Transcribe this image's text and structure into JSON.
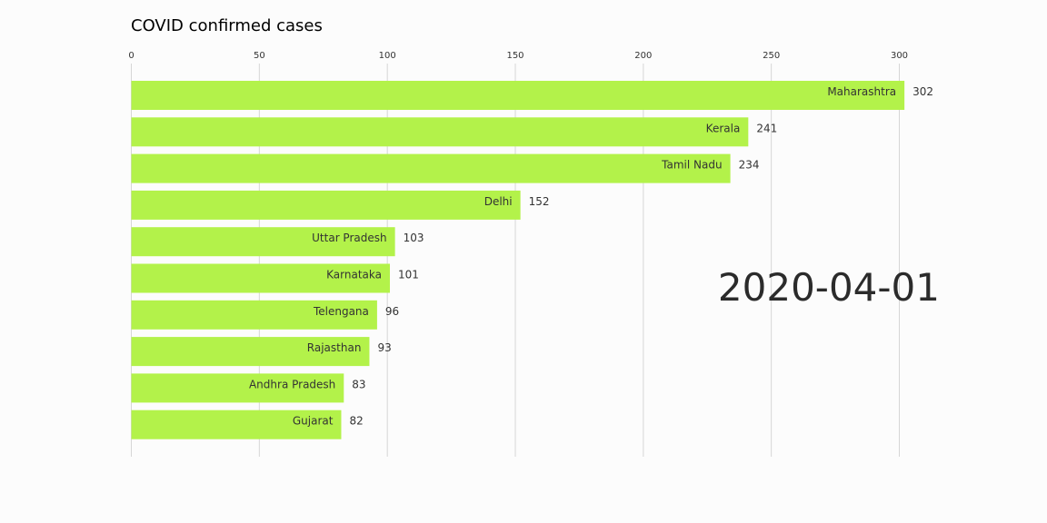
{
  "chart_data": {
    "type": "bar",
    "orientation": "horizontal",
    "title": "COVID confirmed cases",
    "date": "2020-04-01",
    "categories": [
      "Maharashtra",
      "Kerala",
      "Tamil Nadu",
      "Delhi",
      "Uttar Pradesh",
      "Karnataka",
      "Telengana",
      "Rajasthan",
      "Andhra Pradesh",
      "Gujarat"
    ],
    "values": [
      302,
      241,
      234,
      152,
      103,
      101,
      96,
      93,
      83,
      82
    ],
    "xticks": [
      0,
      50,
      100,
      150,
      200,
      250,
      300
    ],
    "xlim": [
      0,
      300
    ],
    "xaxis_position": "top",
    "grid": true,
    "xlabel": "",
    "ylabel": "",
    "bar_color": "#b3f24a",
    "grid_color": "#d6d6d6",
    "text_color": "#333333"
  }
}
